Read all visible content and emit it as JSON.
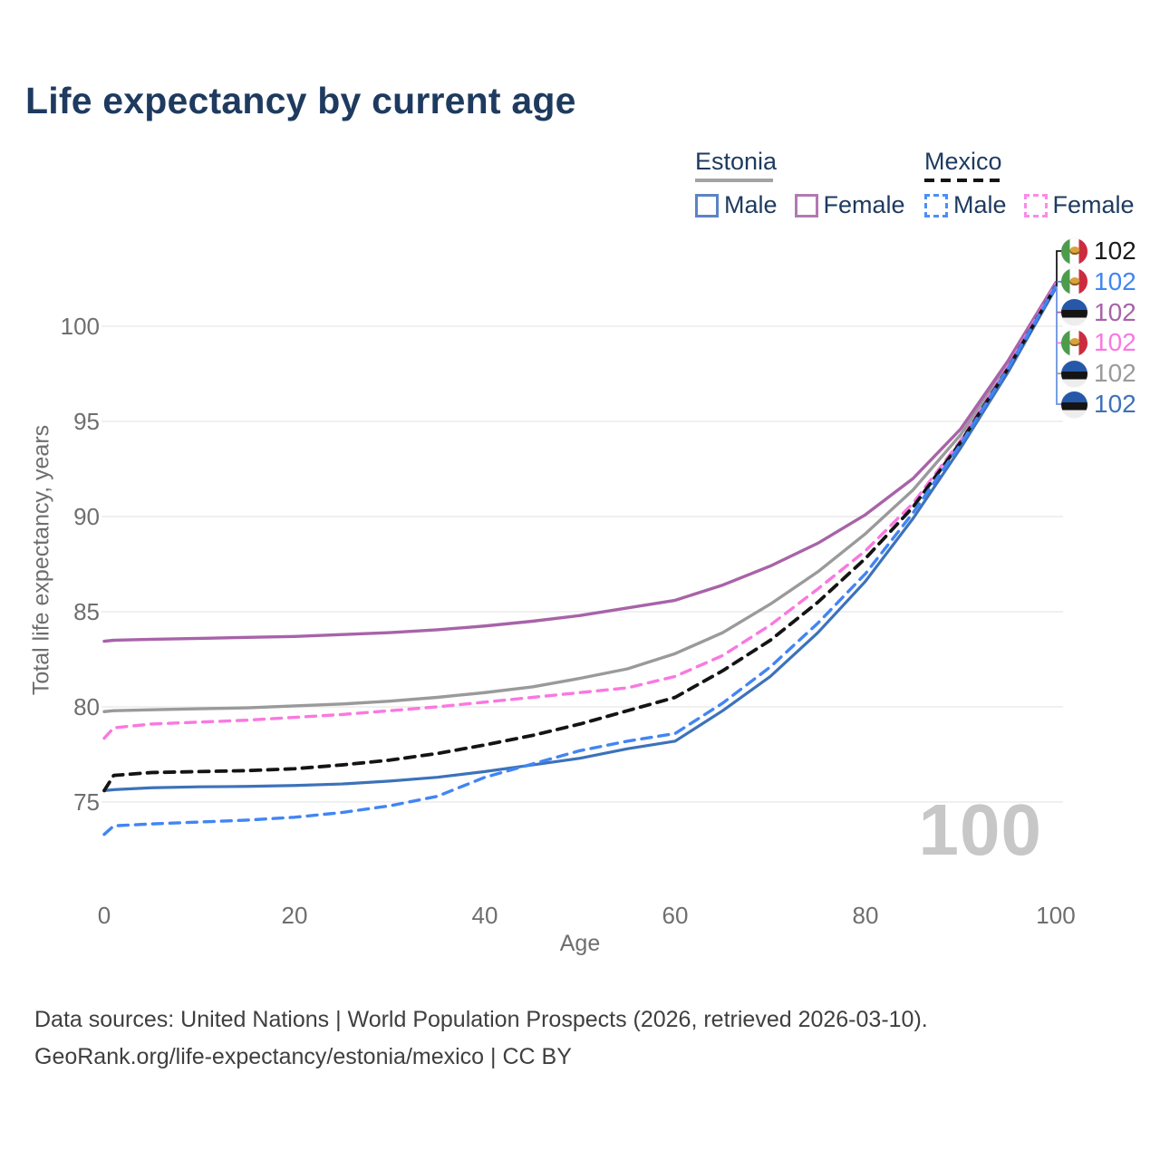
{
  "title": "Life expectancy by current age",
  "legend": {
    "groups": [
      {
        "country": "Estonia",
        "line_style": "solid",
        "underline_color": "#a3a3a3",
        "items": [
          {
            "label": "Male",
            "color": "#3d72ba",
            "dashed": false
          },
          {
            "label": "Female",
            "color": "#a863a8",
            "dashed": false
          }
        ]
      },
      {
        "country": "Mexico",
        "line_style": "dashed",
        "underline_color": "#141414",
        "items": [
          {
            "label": "Male",
            "color": "#4285f4",
            "dashed": true
          },
          {
            "label": "Female",
            "color": "#fa78e0",
            "dashed": true
          }
        ]
      }
    ]
  },
  "axes": {
    "y_title": "Total life expectancy, years",
    "x_title": "Age",
    "y_ticks": [
      75,
      80,
      85,
      90,
      95,
      100
    ],
    "x_ticks": [
      0,
      20,
      40,
      60,
      80,
      100
    ]
  },
  "watermark": "100",
  "end_labels": [
    {
      "flag": "mexico",
      "value": "102",
      "color": "#1a1a1a",
      "series": "Mexico total"
    },
    {
      "flag": "mexico",
      "value": "102",
      "color": "#4285f4",
      "series": "Mexico male"
    },
    {
      "flag": "estonia",
      "value": "102",
      "color": "#a863a8",
      "series": "Estonia female"
    },
    {
      "flag": "mexico",
      "value": "102",
      "color": "#fa78e0",
      "series": "Mexico female"
    },
    {
      "flag": "estonia",
      "value": "102",
      "color": "#9a9a9a",
      "series": "Estonia total"
    },
    {
      "flag": "estonia",
      "value": "102",
      "color": "#3d72ba",
      "series": "Estonia male"
    }
  ],
  "footer": {
    "line1": "Data sources: United Nations | World Population Prospects (2026, retrieved 2026-03-10).",
    "line2": "GeoRank.org/life-expectancy/estonia/mexico | CC BY"
  },
  "chart_data": {
    "type": "line",
    "title": "Life expectancy by current age",
    "xlabel": "Age",
    "ylabel": "Total life expectancy, years",
    "xlim": [
      0,
      100
    ],
    "ylim": [
      73,
      103
    ],
    "grid": "horizontal",
    "x": [
      0,
      1,
      5,
      10,
      15,
      20,
      25,
      30,
      35,
      40,
      45,
      50,
      55,
      60,
      65,
      70,
      75,
      80,
      85,
      90,
      95,
      100
    ],
    "series": [
      {
        "name": "Estonia total",
        "country": "Estonia",
        "sex": "total",
        "style": "solid",
        "color": "#9a9a9a",
        "width": 3.4,
        "values": [
          79.75,
          79.8,
          79.85,
          79.9,
          79.95,
          80.05,
          80.15,
          80.3,
          80.5,
          80.75,
          81.05,
          81.5,
          82.0,
          82.8,
          83.9,
          85.4,
          87.1,
          89.1,
          91.4,
          94.3,
          98.0,
          102.2
        ]
      },
      {
        "name": "Estonia female",
        "country": "Estonia",
        "sex": "female",
        "style": "solid",
        "color": "#a863a8",
        "width": 3.4,
        "values": [
          83.45,
          83.5,
          83.55,
          83.6,
          83.65,
          83.7,
          83.8,
          83.9,
          84.05,
          84.25,
          84.5,
          84.8,
          85.2,
          85.6,
          86.4,
          87.4,
          88.6,
          90.1,
          92.0,
          94.6,
          98.2,
          102.3
        ]
      },
      {
        "name": "Estonia male",
        "country": "Estonia",
        "sex": "male",
        "style": "solid",
        "color": "#3d72ba",
        "width": 3.2,
        "values": [
          75.6,
          75.65,
          75.75,
          75.8,
          75.82,
          75.87,
          75.95,
          76.1,
          76.3,
          76.6,
          76.95,
          77.3,
          77.8,
          78.2,
          79.8,
          81.6,
          83.9,
          86.6,
          89.9,
          93.6,
          97.6,
          102.0
        ]
      },
      {
        "name": "Mexico female",
        "country": "Mexico",
        "sex": "female",
        "style": "dashed",
        "color": "#fa78e0",
        "width": 3.4,
        "values": [
          78.35,
          78.9,
          79.1,
          79.2,
          79.3,
          79.45,
          79.6,
          79.8,
          80.0,
          80.25,
          80.5,
          80.75,
          81.0,
          81.6,
          82.7,
          84.3,
          86.2,
          88.2,
          90.7,
          94.0,
          97.9,
          102.2
        ]
      },
      {
        "name": "Mexico total",
        "country": "Mexico",
        "sex": "total",
        "style": "dashed",
        "color": "#141414",
        "width": 3.8,
        "values": [
          75.6,
          76.4,
          76.55,
          76.6,
          76.65,
          76.75,
          76.95,
          77.2,
          77.55,
          78.0,
          78.5,
          79.1,
          79.8,
          80.5,
          81.9,
          83.5,
          85.5,
          87.8,
          90.5,
          93.9,
          97.8,
          102.1
        ]
      },
      {
        "name": "Mexico male",
        "country": "Mexico",
        "sex": "male",
        "style": "dashed",
        "color": "#4285f4",
        "width": 3.4,
        "values": [
          73.3,
          73.75,
          73.85,
          73.95,
          74.05,
          74.2,
          74.45,
          74.8,
          75.3,
          76.3,
          77.0,
          77.7,
          78.2,
          78.6,
          80.2,
          82.1,
          84.4,
          87.0,
          90.2,
          93.8,
          97.8,
          102.1
        ]
      }
    ]
  }
}
